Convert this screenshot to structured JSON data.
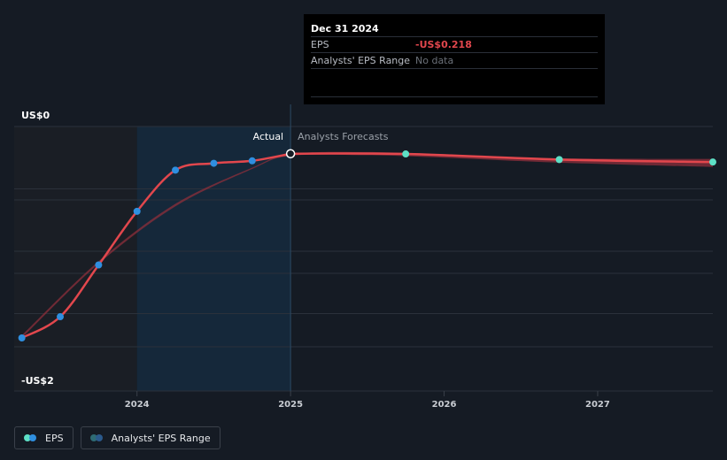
{
  "chart_data": {
    "type": "line",
    "title": "",
    "ylabel": "",
    "xlabel": "",
    "y_axis": {
      "min": -2.0,
      "max": 0.0,
      "top_label": "US$0",
      "bottom_label": "-US$2",
      "gridlines": [
        0.0,
        -0.5,
        -1.0,
        -1.5,
        -2.0
      ]
    },
    "x_axis": {
      "min": 2023.2,
      "max": 2027.75,
      "ticks": [
        {
          "value": 2024,
          "label": "2024"
        },
        {
          "value": 2025,
          "label": "2025"
        },
        {
          "value": 2026,
          "label": "2026"
        },
        {
          "value": 2027,
          "label": "2027"
        }
      ]
    },
    "section_labels": {
      "actual": "Actual",
      "forecast": "Analysts Forecasts"
    },
    "divider_x": 2025.0,
    "highlight_start_x": 2024.0,
    "series": [
      {
        "name": "EPS Actual",
        "color": "#e2474d",
        "marker_color": "#2f8fe0",
        "points": [
          {
            "x": 2023.25,
            "y": -1.695
          },
          {
            "x": 2023.5,
            "y": -1.525
          },
          {
            "x": 2023.75,
            "y": -1.11
          },
          {
            "x": 2024.0,
            "y": -0.68
          },
          {
            "x": 2024.25,
            "y": -0.35
          },
          {
            "x": 2024.5,
            "y": -0.295
          },
          {
            "x": 2024.75,
            "y": -0.275
          },
          {
            "x": 2025.0,
            "y": -0.218
          }
        ]
      },
      {
        "name": "EPS Forecast",
        "color": "#e2474d",
        "marker_color": "#5ee0c6",
        "points": [
          {
            "x": 2025.0,
            "y": -0.218
          },
          {
            "x": 2025.75,
            "y": -0.22
          },
          {
            "x": 2026.75,
            "y": -0.265
          },
          {
            "x": 2027.75,
            "y": -0.285
          }
        ]
      },
      {
        "name": "Analysts' EPS Range",
        "color": "#8e2f3b",
        "upper": [
          {
            "x": 2023.25,
            "y": -1.675
          },
          {
            "x": 2023.75,
            "y": -1.08
          },
          {
            "x": 2024.25,
            "y": -0.62
          },
          {
            "x": 2024.75,
            "y": -0.33
          },
          {
            "x": 2025.0,
            "y": -0.22
          },
          {
            "x": 2025.5,
            "y": -0.205
          },
          {
            "x": 2026.0,
            "y": -0.225
          },
          {
            "x": 2026.75,
            "y": -0.255
          },
          {
            "x": 2027.75,
            "y": -0.26
          }
        ],
        "lower": [
          {
            "x": 2027.75,
            "y": -0.325
          },
          {
            "x": 2026.75,
            "y": -0.29
          },
          {
            "x": 2026.0,
            "y": -0.25
          },
          {
            "x": 2025.5,
            "y": -0.23
          },
          {
            "x": 2025.0,
            "y": -0.235
          },
          {
            "x": 2024.75,
            "y": -0.34
          },
          {
            "x": 2024.25,
            "y": -0.64
          },
          {
            "x": 2023.75,
            "y": -1.1
          },
          {
            "x": 2023.25,
            "y": -1.695
          }
        ]
      }
    ]
  },
  "tooltip": {
    "date": "Dec 31 2024",
    "eps_label": "EPS",
    "eps_value": "-US$0.218",
    "range_label": "Analysts' EPS Range",
    "range_value": "No data"
  },
  "legend": {
    "eps_label": "EPS",
    "range_label": "Analysts' EPS Range",
    "eps_colors": [
      "#5ee0c6",
      "#2f8fe0"
    ],
    "range_colors": [
      "#2e6b74",
      "#2b5a8c"
    ]
  }
}
